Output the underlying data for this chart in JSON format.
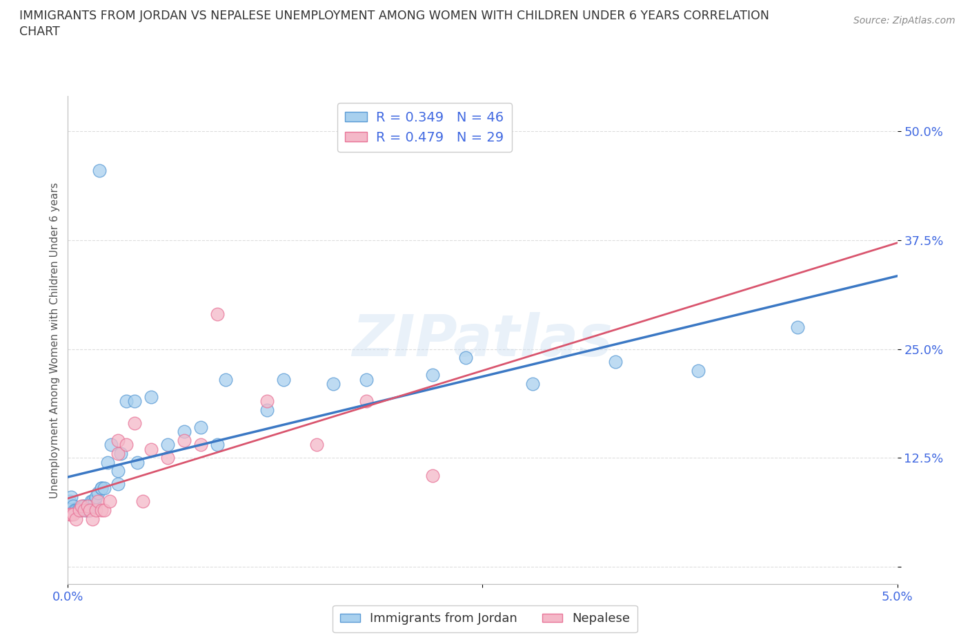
{
  "title_line1": "IMMIGRANTS FROM JORDAN VS NEPALESE UNEMPLOYMENT AMONG WOMEN WITH CHILDREN UNDER 6 YEARS CORRELATION",
  "title_line2": "CHART",
  "source": "Source: ZipAtlas.com",
  "ylabel": "Unemployment Among Women with Children Under 6 years",
  "xlim": [
    0.0,
    0.05
  ],
  "ylim": [
    -0.02,
    0.54
  ],
  "yticks": [
    0.0,
    0.125,
    0.25,
    0.375,
    0.5
  ],
  "ytick_labels": [
    "",
    "12.5%",
    "25.0%",
    "37.5%",
    "50.0%"
  ],
  "xticks": [
    0.0,
    0.025,
    0.05
  ],
  "xtick_labels": [
    "0.0%",
    "",
    "5.0%"
  ],
  "jordan_color": "#A8D0EE",
  "jordan_edge_color": "#5B9BD5",
  "jordan_line_color": "#3B78C4",
  "nepalese_color": "#F4B8C8",
  "nepalese_edge_color": "#E87498",
  "nepalese_line_color": "#D9556E",
  "jordan_points_x": [
    0.0001,
    0.0002,
    0.0003,
    0.0004,
    0.0005,
    0.0006,
    0.0007,
    0.0008,
    0.0009,
    0.001,
    0.0011,
    0.0012,
    0.0013,
    0.0014,
    0.0015,
    0.0016,
    0.0017,
    0.0018,
    0.0019,
    0.002,
    0.002,
    0.0022,
    0.0024,
    0.0026,
    0.003,
    0.003,
    0.0032,
    0.0035,
    0.004,
    0.0042,
    0.005,
    0.006,
    0.007,
    0.008,
    0.009,
    0.0095,
    0.012,
    0.013,
    0.016,
    0.018,
    0.022,
    0.024,
    0.028,
    0.033,
    0.038,
    0.044
  ],
  "jordan_points_y": [
    0.075,
    0.08,
    0.07,
    0.065,
    0.065,
    0.065,
    0.065,
    0.065,
    0.07,
    0.07,
    0.065,
    0.065,
    0.065,
    0.075,
    0.075,
    0.075,
    0.08,
    0.085,
    0.455,
    0.09,
    0.09,
    0.09,
    0.12,
    0.14,
    0.095,
    0.11,
    0.13,
    0.19,
    0.19,
    0.12,
    0.195,
    0.14,
    0.155,
    0.16,
    0.14,
    0.215,
    0.18,
    0.215,
    0.21,
    0.215,
    0.22,
    0.24,
    0.21,
    0.235,
    0.225,
    0.275
  ],
  "nepalese_points_x": [
    0.0001,
    0.0002,
    0.0003,
    0.0005,
    0.0007,
    0.0008,
    0.001,
    0.0012,
    0.0013,
    0.0015,
    0.0017,
    0.0018,
    0.002,
    0.0022,
    0.0025,
    0.003,
    0.003,
    0.0035,
    0.004,
    0.0045,
    0.005,
    0.006,
    0.007,
    0.008,
    0.009,
    0.012,
    0.015,
    0.018,
    0.022
  ],
  "nepalese_points_y": [
    0.06,
    0.06,
    0.06,
    0.055,
    0.065,
    0.07,
    0.065,
    0.07,
    0.065,
    0.055,
    0.065,
    0.075,
    0.065,
    0.065,
    0.075,
    0.13,
    0.145,
    0.14,
    0.165,
    0.075,
    0.135,
    0.125,
    0.145,
    0.14,
    0.29,
    0.19,
    0.14,
    0.19,
    0.105
  ],
  "watermark_text": "ZIPatlas",
  "legend_jordan_label": "R = 0.349   N = 46",
  "legend_nepalese_label": "R = 0.479   N = 29",
  "legend_jordan_label2": "Immigrants from Jordan",
  "legend_nepalese_label2": "Nepalese",
  "grid_color": "#DDDDDD",
  "background_color": "#FFFFFF"
}
